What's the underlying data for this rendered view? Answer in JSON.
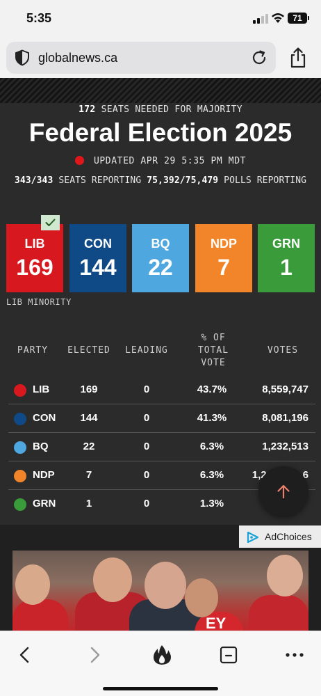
{
  "status_bar": {
    "time": "5:35",
    "battery": "71"
  },
  "browser": {
    "domain": "globalnews.ca"
  },
  "election": {
    "majority_count": "172",
    "majority_text": "SEATS NEEDED FOR MAJORITY",
    "title": "Federal Election 2025",
    "updated": "UPDATED APR 29 5:35 PM MDT",
    "seats_reporting_value": "343/343",
    "seats_reporting_label": "SEATS REPORTING",
    "polls_reporting_value": "75,392/75,479",
    "polls_reporting_label": "POLLS REPORTING",
    "result_label": "LIB MINORITY",
    "tiles": [
      {
        "party": "LIB",
        "seats": "169",
        "color": "#d7191f"
      },
      {
        "party": "CON",
        "seats": "144",
        "color": "#0f4a86"
      },
      {
        "party": "BQ",
        "seats": "22",
        "color": "#4ea7df"
      },
      {
        "party": "NDP",
        "seats": "7",
        "color": "#f2852a"
      },
      {
        "party": "GRN",
        "seats": "1",
        "color": "#3a9b3a"
      }
    ],
    "table": {
      "headers": {
        "party": "PARTY",
        "elected": "ELECTED",
        "leading": "LEADING",
        "vote_pct_1": "% OF",
        "vote_pct_2": "TOTAL",
        "vote_pct_3": "VOTE",
        "votes": "VOTES"
      },
      "rows": [
        {
          "party": "LIB",
          "elected": "169",
          "leading": "0",
          "pct": "43.7%",
          "votes": "8,559,747",
          "color": "#d7191f"
        },
        {
          "party": "CON",
          "elected": "144",
          "leading": "0",
          "pct": "41.3%",
          "votes": "8,081,196",
          "color": "#0f4a86"
        },
        {
          "party": "BQ",
          "elected": "22",
          "leading": "0",
          "pct": "6.3%",
          "votes": "1,232,513",
          "color": "#4ea7df"
        },
        {
          "party": "NDP",
          "elected": "7",
          "leading": "0",
          "pct": "6.3%",
          "votes": "1,2",
          "votes_tail": "6",
          "color": "#f2852a"
        },
        {
          "party": "GRN",
          "elected": "1",
          "leading": "0",
          "pct": "1.3%",
          "votes": "2",
          "color": "#3a9b3a"
        }
      ]
    }
  },
  "ad": {
    "adchoices_label": "AdChoices"
  },
  "photo_sign": "EY"
}
